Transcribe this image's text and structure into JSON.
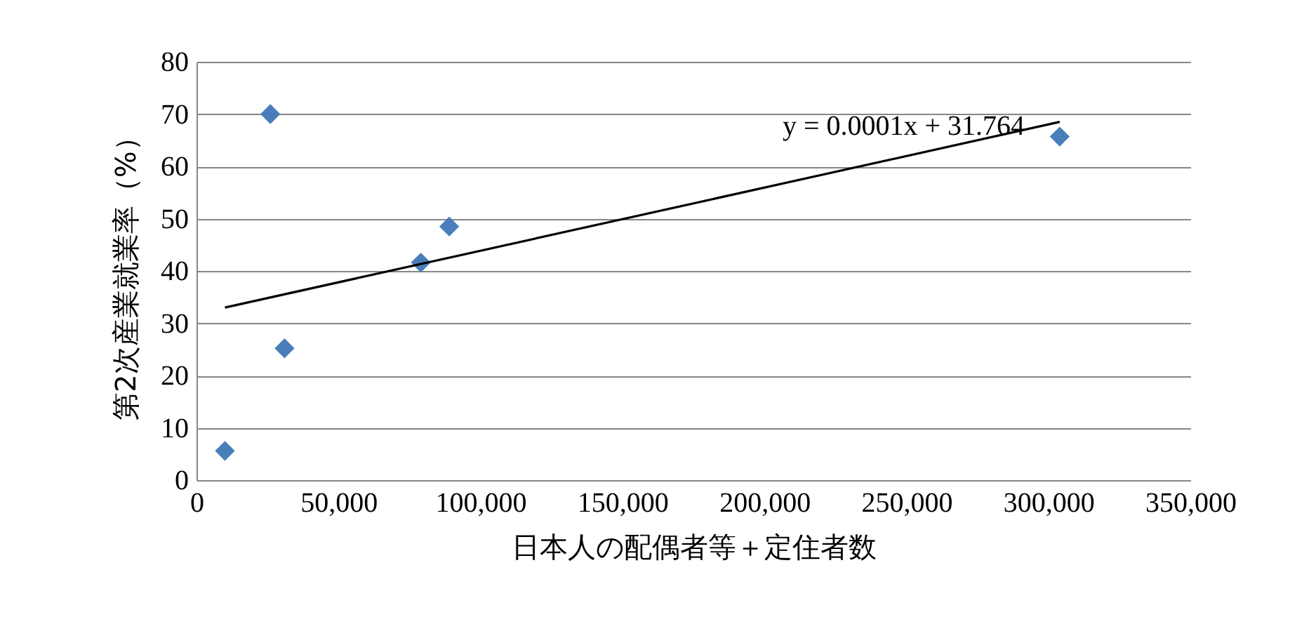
{
  "chart_data": {
    "type": "scatter",
    "xlabel": "日本人の配偶者等＋定住者数",
    "ylabel": "第2次産業就業率（%）",
    "xlim": [
      0,
      350000
    ],
    "xticks": [
      0,
      {
        "value": 50000,
        "label": "50,000"
      },
      {
        "value": 100000,
        "label": "100,000"
      },
      {
        "value": 150000,
        "label": "150,000"
      },
      {
        "value": 200000,
        "label": "200,000"
      },
      {
        "value": 250000,
        "label": "250,000"
      },
      {
        "value": 300000,
        "label": "300,000"
      },
      {
        "value": 350000,
        "label": "350,000"
      }
    ],
    "ylim": [
      0,
      80
    ],
    "yticks": [
      0,
      10,
      20,
      30,
      40,
      50,
      60,
      70,
      80
    ],
    "grid": "y",
    "series": [
      {
        "type": "scatter",
        "color": "#4a7ebb",
        "marker": "diamond",
        "x": [
          10000,
          26000,
          31000,
          79000,
          89000,
          304000
        ],
        "values": [
          5.6,
          70,
          25.2,
          41.6,
          48.5,
          65.7
        ]
      },
      {
        "type": "line",
        "marker": "none",
        "color": "#000000",
        "x": [
          10000,
          304000
        ],
        "values": [
          33,
          68.5
        ]
      }
    ],
    "annotations": [
      "y = 0.0001x + 31.764"
    ]
  }
}
